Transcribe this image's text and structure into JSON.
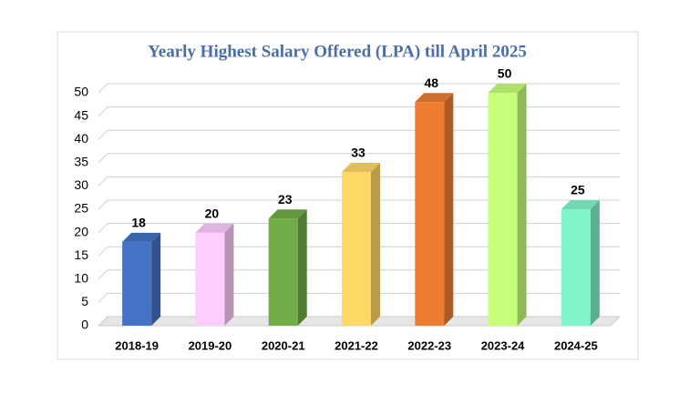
{
  "chart_data": {
    "type": "bar3d",
    "title": "Yearly Highest Salary Offered (LPA) till April 2025",
    "categories": [
      "2018-19",
      "2019-20",
      "2020-21",
      "2021-22",
      "2022-23",
      "2023-24",
      "2024-25"
    ],
    "values": [
      18,
      20,
      23,
      33,
      48,
      50,
      25
    ],
    "colors": [
      "#4472c4",
      "#ffccff",
      "#70ad47",
      "#ffd966",
      "#ed7d31",
      "#c6ff79",
      "#80f5ca"
    ],
    "ylim": [
      0,
      50
    ],
    "yticks": [
      0,
      5,
      10,
      15,
      20,
      25,
      30,
      35,
      40,
      45,
      50
    ],
    "grid": true
  }
}
